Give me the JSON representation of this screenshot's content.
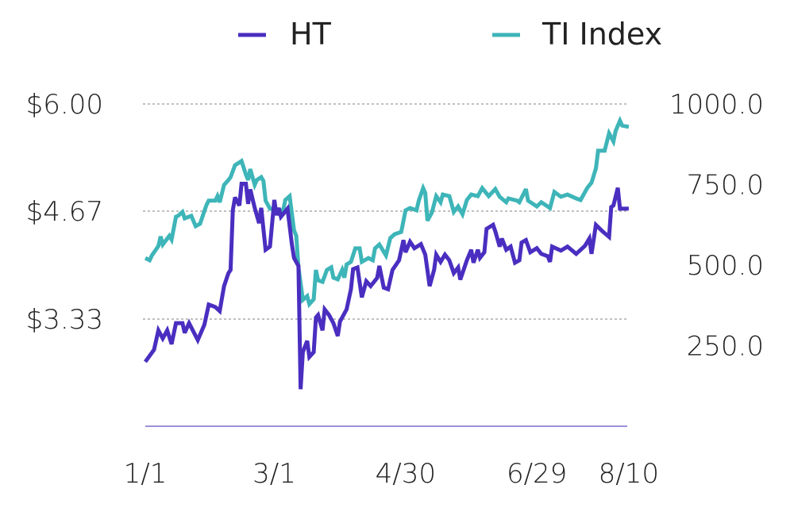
{
  "chart_data": {
    "type": "line",
    "title": "",
    "xlabel": "",
    "ylabel": "",
    "legend_position": "top",
    "grid": "horizontal dotted",
    "x_ticks": [
      "1/1",
      "3/1",
      "4/30",
      "6/29",
      "8/10"
    ],
    "y_left": {
      "ticks": [
        "$6.00",
        "$4.67",
        "$3.33"
      ],
      "tick_values": [
        6.0,
        4.67,
        3.33
      ],
      "range": [
        2.0,
        6.0
      ]
    },
    "y_right": {
      "ticks": [
        "1000.0",
        "750.0",
        "500.0",
        "250.0"
      ],
      "tick_values": [
        1000,
        750,
        500,
        250
      ],
      "range": [
        0,
        1000
      ]
    },
    "series": [
      {
        "name": "HT",
        "axis": "left",
        "color": "#4a2ec0",
        "points": [
          [
            "1/1",
            2.8
          ],
          [
            "1/5",
            2.95
          ],
          [
            "1/7",
            3.19
          ],
          [
            "1/9",
            3.09
          ],
          [
            "1/11",
            3.19
          ],
          [
            "1/13",
            3.02
          ],
          [
            "1/15",
            3.28
          ],
          [
            "1/18",
            3.28
          ],
          [
            "1/19",
            3.16
          ],
          [
            "1/21",
            3.28
          ],
          [
            "1/25",
            3.07
          ],
          [
            "1/28",
            3.26
          ],
          [
            "1/30",
            3.51
          ],
          [
            "2/2",
            3.48
          ],
          [
            "2/4",
            3.43
          ],
          [
            "2/6",
            3.74
          ],
          [
            "2/8",
            3.9
          ],
          [
            "2/9",
            3.94
          ],
          [
            "2/10",
            4.68
          ],
          [
            "2/11",
            4.84
          ],
          [
            "2/13",
            4.74
          ],
          [
            "2/14",
            5.01
          ],
          [
            "2/16",
            5.01
          ],
          [
            "2/17",
            4.76
          ],
          [
            "2/18",
            4.94
          ],
          [
            "2/20",
            4.71
          ],
          [
            "2/22",
            4.52
          ],
          [
            "2/23",
            4.71
          ],
          [
            "2/25",
            4.19
          ],
          [
            "2/27",
            4.23
          ],
          [
            "3/1",
            4.81
          ],
          [
            "3/2",
            4.62
          ],
          [
            "3/3",
            4.71
          ],
          [
            "3/4",
            4.6
          ],
          [
            "3/7",
            4.7
          ],
          [
            "3/9",
            4.26
          ],
          [
            "3/10",
            4.09
          ],
          [
            "3/12",
            3.99
          ],
          [
            "3/13",
            2.46
          ],
          [
            "3/14",
            2.92
          ],
          [
            "3/16",
            3.06
          ],
          [
            "3/17",
            2.86
          ],
          [
            "3/19",
            2.92
          ],
          [
            "3/20",
            3.35
          ],
          [
            "3/21",
            3.38
          ],
          [
            "3/23",
            3.19
          ],
          [
            "3/24",
            3.45
          ],
          [
            "3/26",
            3.38
          ],
          [
            "3/28",
            3.28
          ],
          [
            "3/30",
            3.12
          ],
          [
            "3/31",
            3.3
          ],
          [
            "4/3",
            3.45
          ],
          [
            "4/5",
            3.7
          ],
          [
            "4/6",
            3.95
          ],
          [
            "4/8",
            3.97
          ],
          [
            "4/10",
            3.6
          ],
          [
            "4/12",
            3.8
          ],
          [
            "4/14",
            3.74
          ],
          [
            "4/17",
            3.84
          ],
          [
            "4/18",
            3.99
          ],
          [
            "4/20",
            3.72
          ],
          [
            "4/22",
            3.7
          ],
          [
            "4/24",
            3.94
          ],
          [
            "4/27",
            4.06
          ],
          [
            "4/29",
            4.31
          ],
          [
            "4/30",
            4.16
          ],
          [
            "5/2",
            4.29
          ],
          [
            "5/4",
            4.21
          ],
          [
            "5/7",
            4.26
          ],
          [
            "5/9",
            4.13
          ],
          [
            "5/11",
            3.74
          ],
          [
            "5/13",
            3.94
          ],
          [
            "5/14",
            4.13
          ],
          [
            "5/16",
            4.04
          ],
          [
            "5/18",
            4.13
          ],
          [
            "5/20",
            4.06
          ],
          [
            "5/22",
            3.9
          ],
          [
            "5/24",
            3.97
          ],
          [
            "5/25",
            3.82
          ],
          [
            "5/28",
            4.06
          ],
          [
            "5/30",
            4.19
          ],
          [
            "5/31",
            4.03
          ],
          [
            "6/2",
            4.19
          ],
          [
            "6/3",
            4.09
          ],
          [
            "6/5",
            4.16
          ],
          [
            "6/6",
            4.45
          ],
          [
            "6/9",
            4.5
          ],
          [
            "6/10",
            4.42
          ],
          [
            "6/12",
            4.23
          ],
          [
            "6/13",
            4.33
          ],
          [
            "6/15",
            4.19
          ],
          [
            "6/17",
            4.23
          ],
          [
            "6/19",
            4.03
          ],
          [
            "6/21",
            4.06
          ],
          [
            "6/22",
            4.28
          ],
          [
            "6/24",
            4.31
          ],
          [
            "6/26",
            4.16
          ],
          [
            "6/29",
            4.21
          ],
          [
            "7/1",
            4.14
          ],
          [
            "7/4",
            4.11
          ],
          [
            "7/5",
            4.04
          ],
          [
            "7/6",
            4.23
          ],
          [
            "7/10",
            4.18
          ],
          [
            "7/13",
            4.23
          ],
          [
            "7/17",
            4.14
          ],
          [
            "7/21",
            4.24
          ],
          [
            "7/23",
            4.33
          ],
          [
            "7/24",
            4.14
          ],
          [
            "7/26",
            4.5
          ],
          [
            "7/29",
            4.42
          ],
          [
            "8/1",
            4.35
          ],
          [
            "8/2",
            4.72
          ],
          [
            "8/3",
            4.74
          ],
          [
            "8/5",
            4.96
          ],
          [
            "8/6",
            4.7
          ],
          [
            "8/8",
            4.7
          ],
          [
            "8/10",
            4.7
          ]
        ]
      },
      {
        "name": "TI Index",
        "axis": "right",
        "color": "#3eb5b8",
        "points": [
          [
            "1/1",
            522
          ],
          [
            "1/3",
            515
          ],
          [
            "1/4",
            530
          ],
          [
            "1/7",
            559
          ],
          [
            "1/8",
            589
          ],
          [
            "1/9",
            564
          ],
          [
            "1/12",
            591
          ],
          [
            "1/13",
            579
          ],
          [
            "1/15",
            650
          ],
          [
            "1/16",
            653
          ],
          [
            "1/18",
            665
          ],
          [
            "1/19",
            645
          ],
          [
            "1/22",
            653
          ],
          [
            "1/24",
            621
          ],
          [
            "1/26",
            628
          ],
          [
            "1/29",
            687
          ],
          [
            "1/30",
            700
          ],
          [
            "2/2",
            700
          ],
          [
            "2/3",
            714
          ],
          [
            "2/4",
            695
          ],
          [
            "2/6",
            749
          ],
          [
            "2/8",
            764
          ],
          [
            "2/9",
            773
          ],
          [
            "2/11",
            810
          ],
          [
            "2/14",
            823
          ],
          [
            "2/16",
            781
          ],
          [
            "2/17",
            764
          ],
          [
            "2/18",
            798
          ],
          [
            "2/20",
            749
          ],
          [
            "2/21",
            764
          ],
          [
            "2/23",
            773
          ],
          [
            "2/24",
            761
          ],
          [
            "2/25",
            700
          ],
          [
            "2/27",
            675
          ],
          [
            "3/2",
            670
          ],
          [
            "3/5",
            670
          ],
          [
            "3/6",
            702
          ],
          [
            "3/8",
            714
          ],
          [
            "3/10",
            608
          ],
          [
            "3/11",
            591
          ],
          [
            "3/12",
            493
          ],
          [
            "3/14",
            392
          ],
          [
            "3/16",
            404
          ],
          [
            "3/17",
            379
          ],
          [
            "3/19",
            394
          ],
          [
            "3/20",
            485
          ],
          [
            "3/21",
            453
          ],
          [
            "3/23",
            448
          ],
          [
            "3/25",
            485
          ],
          [
            "3/27",
            493
          ],
          [
            "3/28",
            461
          ],
          [
            "3/30",
            456
          ],
          [
            "4/1",
            485
          ],
          [
            "4/2",
            461
          ],
          [
            "4/3",
            502
          ],
          [
            "4/5",
            510
          ],
          [
            "4/7",
            552
          ],
          [
            "4/9",
            552
          ],
          [
            "4/10",
            510
          ],
          [
            "4/13",
            522
          ],
          [
            "4/15",
            515
          ],
          [
            "4/16",
            552
          ],
          [
            "4/18",
            564
          ],
          [
            "4/21",
            530
          ],
          [
            "4/23",
            584
          ],
          [
            "4/25",
            596
          ],
          [
            "4/28",
            603
          ],
          [
            "4/30",
            670
          ],
          [
            "5/2",
            677
          ],
          [
            "5/5",
            670
          ],
          [
            "5/6",
            700
          ],
          [
            "5/8",
            739
          ],
          [
            "5/9",
            724
          ],
          [
            "5/10",
            638
          ],
          [
            "5/12",
            663
          ],
          [
            "5/14",
            714
          ],
          [
            "5/16",
            695
          ],
          [
            "5/17",
            719
          ],
          [
            "5/20",
            714
          ],
          [
            "5/21",
            690
          ],
          [
            "5/22",
            665
          ],
          [
            "5/24",
            682
          ],
          [
            "5/26",
            658
          ],
          [
            "5/28",
            702
          ],
          [
            "5/30",
            719
          ],
          [
            "6/2",
            714
          ],
          [
            "6/4",
            739
          ],
          [
            "6/7",
            714
          ],
          [
            "6/10",
            736
          ],
          [
            "6/12",
            712
          ],
          [
            "6/15",
            695
          ],
          [
            "6/16",
            707
          ],
          [
            "6/20",
            700
          ],
          [
            "6/21",
            695
          ],
          [
            "6/24",
            736
          ],
          [
            "6/25",
            700
          ],
          [
            "6/29",
            682
          ],
          [
            "7/1",
            695
          ],
          [
            "7/5",
            677
          ],
          [
            "7/7",
            727
          ],
          [
            "7/10",
            712
          ],
          [
            "7/13",
            719
          ],
          [
            "7/17",
            707
          ],
          [
            "7/19",
            702
          ],
          [
            "7/22",
            739
          ],
          [
            "7/24",
            756
          ],
          [
            "7/26",
            800
          ],
          [
            "7/27",
            855
          ],
          [
            "7/30",
            855
          ],
          [
            "8/1",
            909
          ],
          [
            "8/3",
            884
          ],
          [
            "8/4",
            916
          ],
          [
            "8/6",
            948
          ],
          [
            "8/7",
            933
          ],
          [
            "8/10",
            929
          ]
        ]
      }
    ]
  }
}
